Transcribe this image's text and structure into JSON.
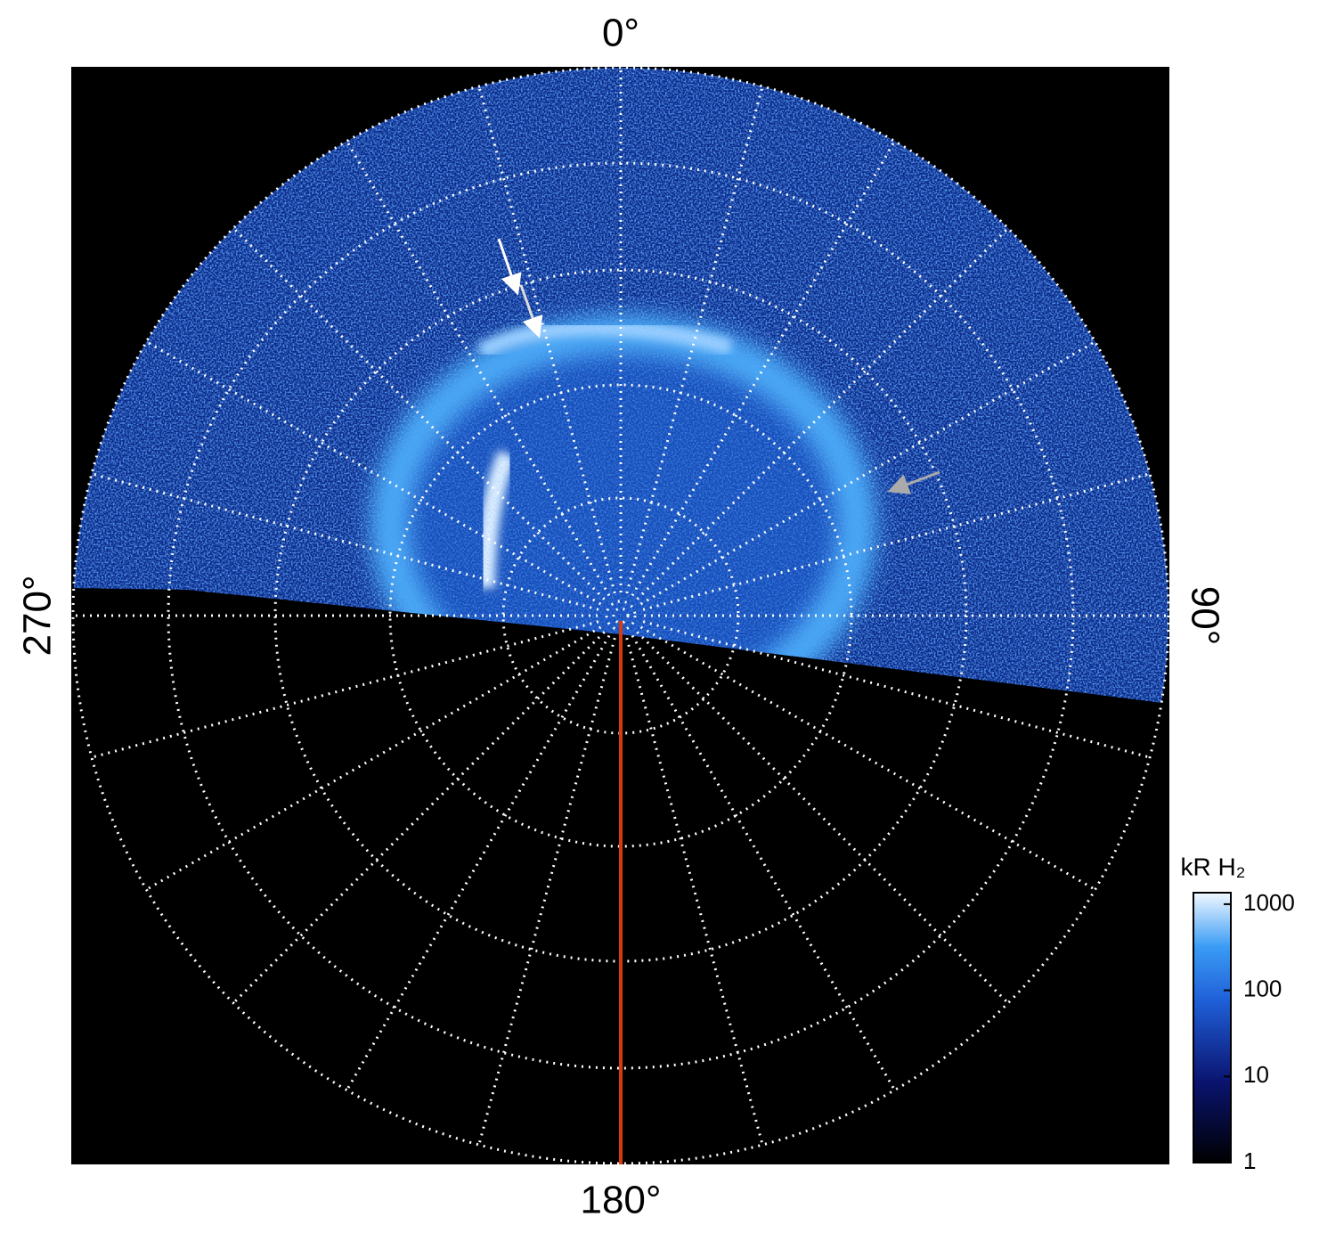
{
  "labels": {
    "top": "0°",
    "right": "90°",
    "bottom": "180°",
    "left": "270°"
  },
  "colorbar": {
    "title": "kR H₂",
    "lim": [
      1,
      1360
    ],
    "ticks": [
      1,
      10,
      100,
      1000
    ],
    "log": true
  }
}
